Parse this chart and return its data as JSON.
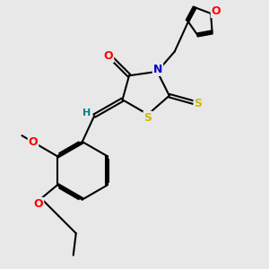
{
  "bg_color": "#e8e8e8",
  "bond_color": "#000000",
  "bond_width": 1.5,
  "atom_colors": {
    "O": "#ff0000",
    "N": "#0000cd",
    "S": "#ccbb00",
    "H": "#008080",
    "C": "#000000"
  },
  "figsize": [
    3.0,
    3.0
  ],
  "dpi": 100,
  "xlim": [
    0.0,
    10.0
  ],
  "ylim": [
    0.0,
    10.0
  ]
}
